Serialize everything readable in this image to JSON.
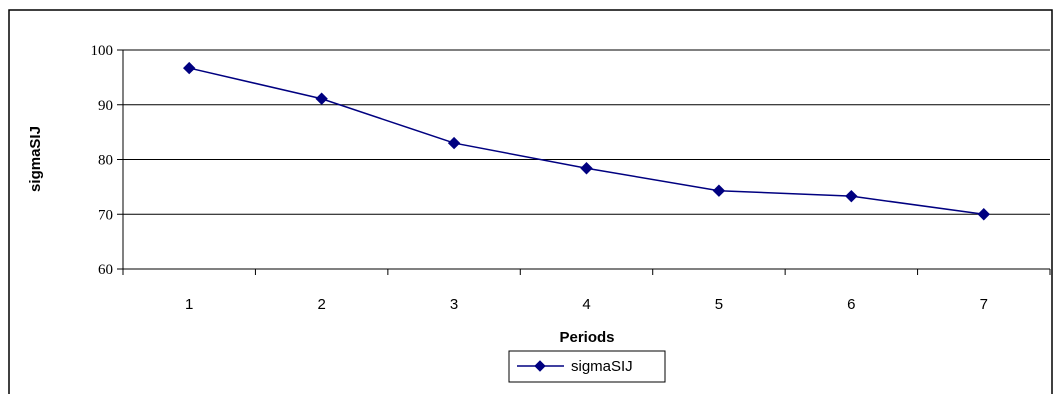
{
  "chart_data": {
    "type": "line",
    "x": [
      1,
      2,
      3,
      4,
      5,
      6,
      7
    ],
    "categories": [
      "1",
      "2",
      "3",
      "4",
      "5",
      "6",
      "7"
    ],
    "series": [
      {
        "name": "sigmaSIJ",
        "values": [
          96.7,
          91.1,
          83.0,
          78.4,
          74.3,
          73.3,
          70.0
        ]
      }
    ],
    "xlabel": "Periods",
    "ylabel": "sigmaSIJ",
    "ylim": [
      60,
      100
    ],
    "yticks": [
      "60",
      "70",
      "80",
      "90",
      "100"
    ],
    "grid": "horizontal",
    "legend_position": "bottom",
    "colors": {
      "series": "#000080",
      "gridline": "#000000",
      "axis": "#000000",
      "background": "#ffffff"
    },
    "marker": "diamond"
  }
}
